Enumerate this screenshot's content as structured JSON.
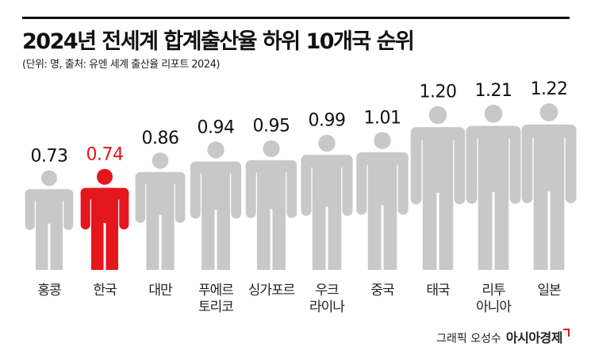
{
  "chart_data": {
    "type": "pictogram",
    "title": "2024년 전세계 합계출산율 하위 10개국 순위",
    "subtitle": "(단위: 명, 출처: 유엔 세계 출산율 리포트 2024)",
    "categories": [
      "홍콩",
      "한국",
      "대만",
      "푸에르\n토리코",
      "싱가포르",
      "우크\n라이나",
      "중국",
      "태국",
      "리투\n아니아",
      "일본"
    ],
    "values": [
      0.73,
      0.74,
      0.86,
      0.94,
      0.95,
      0.99,
      1.01,
      1.2,
      1.21,
      1.22
    ],
    "value_labels": [
      "0.73",
      "0.74",
      "0.86",
      "0.94",
      "0.95",
      "0.99",
      "1.01",
      "1.20",
      "1.21",
      "1.22"
    ],
    "colors": [
      "#c8c8c8",
      "#e5161d",
      "#c8c8c8",
      "#c8c8c8",
      "#c8c8c8",
      "#c8c8c8",
      "#c8c8c8",
      "#c8c8c8",
      "#c8c8c8",
      "#c8c8c8"
    ],
    "credit": "그래픽 오성수",
    "source_logo": "아시아경제"
  }
}
